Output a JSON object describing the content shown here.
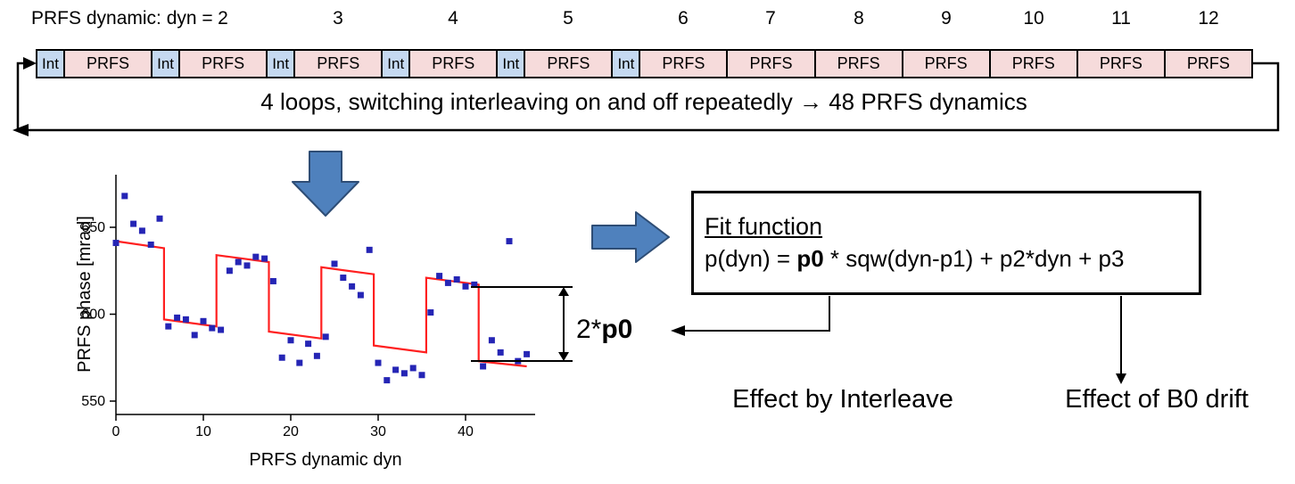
{
  "header": {
    "label": "PRFS dynamic: dyn =",
    "dyn_numbers": [
      "2",
      "3",
      "4",
      "5",
      "6",
      "7",
      "8",
      "9",
      "10",
      "11",
      "12"
    ]
  },
  "sequence": {
    "blocks": [
      "Int",
      "PRFS",
      "Int",
      "PRFS",
      "Int",
      "PRFS",
      "Int",
      "PRFS",
      "Int",
      "PRFS",
      "Int",
      "PRFS",
      "PRFS",
      "PRFS",
      "PRFS",
      "PRFS",
      "PRFS",
      "PRFS"
    ]
  },
  "loop": {
    "caption": "4 loops, switching interleaving  on and off repeatedly  →  48 PRFS dynamics"
  },
  "chart_data": {
    "type": "scatter",
    "title": "",
    "xlabel": "PRFS dynamic dyn",
    "ylabel": "PRFS phase  [mrad]",
    "xlim": [
      0,
      48
    ],
    "ylim": [
      540,
      685
    ],
    "xticks": [
      0,
      10,
      20,
      30,
      40
    ],
    "yticks": [
      550,
      600,
      650
    ],
    "grid": false,
    "legend": "none",
    "series": [
      {
        "name": "measured-phase",
        "type": "scatter",
        "marker": "square",
        "color": "#2525b5",
        "x": [
          0,
          1,
          2,
          3,
          4,
          5,
          6,
          7,
          8,
          9,
          10,
          11,
          12,
          13,
          14,
          15,
          16,
          17,
          18,
          19,
          20,
          21,
          22,
          23,
          24,
          25,
          26,
          27,
          28,
          29,
          30,
          31,
          32,
          33,
          34,
          35,
          36,
          37,
          38,
          39,
          40,
          41,
          42,
          43,
          44,
          45,
          46,
          47
        ],
        "y": [
          641,
          668,
          652,
          648,
          640,
          655,
          593,
          598,
          597,
          588,
          596,
          592,
          591,
          625,
          630,
          628,
          633,
          632,
          619,
          575,
          585,
          572,
          583,
          576,
          587,
          629,
          621,
          616,
          611,
          637,
          572,
          562,
          568,
          566,
          569,
          565,
          601,
          622,
          618,
          620,
          616,
          617,
          570,
          585,
          578,
          642,
          573,
          577
        ]
      },
      {
        "name": "square-wave-fit",
        "type": "line",
        "color": "#ff2020",
        "x": [
          0,
          5.5,
          5.5,
          11.5,
          11.5,
          17.5,
          17.5,
          23.5,
          23.5,
          29.5,
          29.5,
          35.5,
          35.5,
          41.5,
          41.5,
          47
        ],
        "y": [
          642,
          638,
          597,
          593,
          634,
          630,
          590,
          586,
          627,
          623,
          582,
          578,
          621,
          617,
          573,
          570
        ]
      }
    ]
  },
  "annotation": {
    "two_p0_prefix": "2*",
    "two_p0_bold": "p0"
  },
  "fit_box": {
    "title": "Fit function",
    "formula_prefix": "p(dyn) = ",
    "formula_bold": "p0",
    "formula_rest": " * sqw(dyn-p1) + p2*dyn + p3"
  },
  "labels": {
    "effect_interleave": "Effect by Interleave",
    "effect_b0": "Effect of B0 drift"
  },
  "colors": {
    "arrow_fill": "#4f81bd",
    "arrow_stroke": "#2e4d75",
    "int_bg": "#c5d9f1",
    "prfs_bg": "#f6dbdb",
    "fit_line": "#ff2020",
    "scatter": "#2525b5",
    "loop_stroke": "#000000"
  }
}
